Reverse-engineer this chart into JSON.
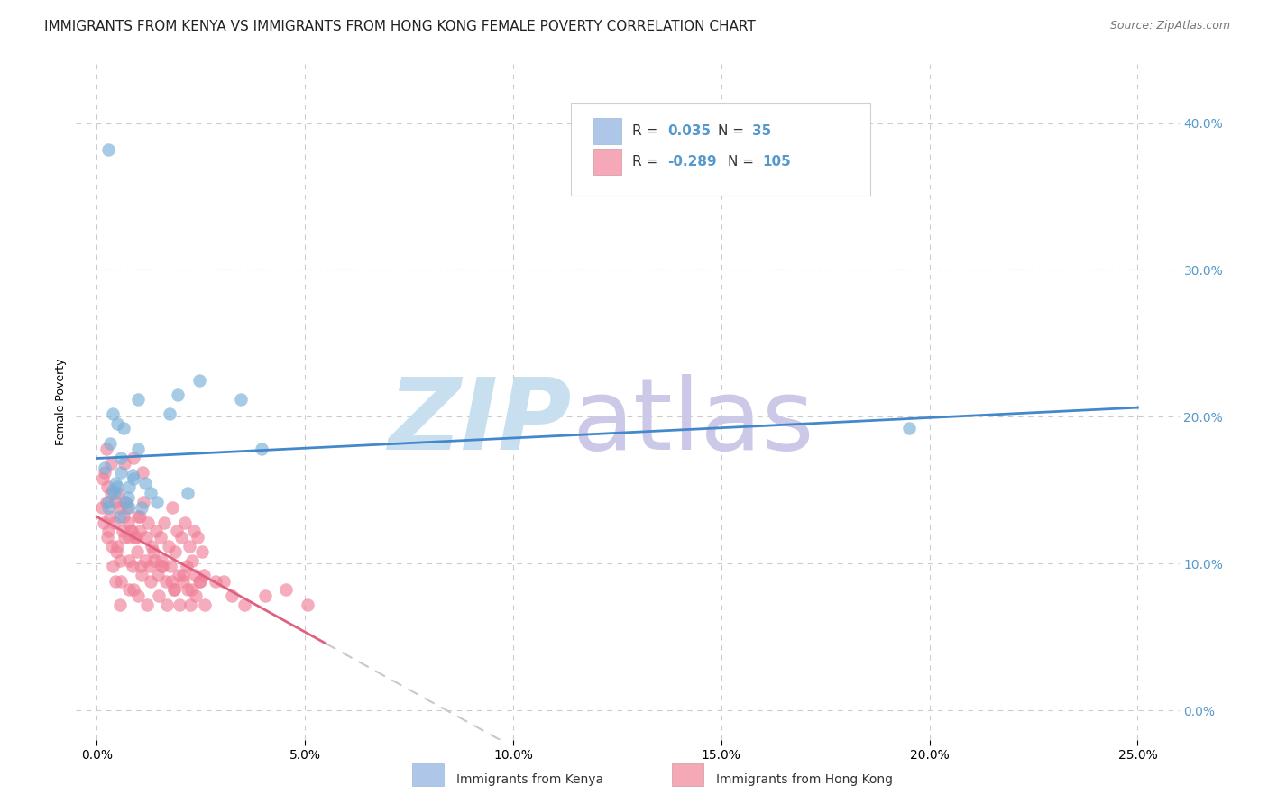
{
  "title": "IMMIGRANTS FROM KENYA VS IMMIGRANTS FROM HONG KONG FEMALE POVERTY CORRELATION CHART",
  "source": "Source: ZipAtlas.com",
  "xlabel_ticks": [
    0.0,
    5.0,
    10.0,
    15.0,
    20.0,
    25.0
  ],
  "ylabel_ticks": [
    0.0,
    10.0,
    20.0,
    30.0,
    40.0
  ],
  "xlim": [
    -0.5,
    26.0
  ],
  "ylim": [
    -2.0,
    44.0
  ],
  "ylabel": "Female Poverty",
  "kenya_color": "#7ab0d8",
  "kenya_scatter_alpha": 0.65,
  "hk_color": "#f08098",
  "hk_scatter_alpha": 0.65,
  "kenya_trend_color": "#4488cc",
  "hk_trend_color": "#e06080",
  "hk_trend_dashed_color": "#c8c8c8",
  "grid_color": "#cccccc",
  "background_color": "#ffffff",
  "title_fontsize": 11,
  "axis_label_fontsize": 9,
  "tick_fontsize": 10,
  "right_tick_color": "#5599cc",
  "legend_box_color": "#aec6e8",
  "legend_pink_color": "#f4a8b8",
  "legend_text_color": "#5599cc",
  "legend_label_color": "#333333",
  "kenya_points": [
    [
      0.18,
      16.5
    ],
    [
      0.45,
      15.5
    ],
    [
      0.28,
      13.8
    ],
    [
      0.75,
      14.5
    ],
    [
      0.38,
      15.0
    ],
    [
      0.55,
      13.2
    ],
    [
      1.15,
      15.5
    ],
    [
      0.85,
      16.0
    ],
    [
      0.65,
      19.2
    ],
    [
      1.45,
      14.2
    ],
    [
      0.32,
      18.2
    ],
    [
      1.95,
      21.5
    ],
    [
      0.48,
      19.5
    ],
    [
      1.75,
      20.2
    ],
    [
      0.58,
      17.2
    ],
    [
      0.42,
      14.8
    ],
    [
      2.45,
      22.5
    ],
    [
      0.98,
      17.8
    ],
    [
      0.78,
      13.8
    ],
    [
      3.45,
      21.2
    ],
    [
      0.28,
      38.2
    ],
    [
      3.95,
      17.8
    ],
    [
      0.68,
      14.2
    ],
    [
      1.08,
      13.8
    ],
    [
      0.88,
      15.8
    ],
    [
      0.58,
      16.2
    ],
    [
      1.28,
      14.8
    ],
    [
      0.48,
      15.2
    ],
    [
      2.18,
      14.8
    ],
    [
      0.38,
      20.2
    ],
    [
      0.78,
      15.2
    ],
    [
      0.98,
      21.2
    ],
    [
      19.5,
      19.2
    ],
    [
      0.28,
      14.2
    ]
  ],
  "hk_points": [
    [
      0.12,
      13.8
    ],
    [
      0.22,
      14.2
    ],
    [
      0.32,
      13.2
    ],
    [
      0.42,
      12.8
    ],
    [
      0.52,
      14.8
    ],
    [
      0.62,
      12.2
    ],
    [
      0.72,
      13.8
    ],
    [
      0.82,
      12.2
    ],
    [
      0.92,
      11.8
    ],
    [
      1.02,
      13.2
    ],
    [
      1.12,
      14.2
    ],
    [
      1.22,
      12.8
    ],
    [
      1.32,
      11.2
    ],
    [
      1.42,
      12.2
    ],
    [
      1.52,
      11.8
    ],
    [
      1.62,
      12.8
    ],
    [
      1.72,
      11.2
    ],
    [
      1.82,
      13.8
    ],
    [
      1.92,
      12.2
    ],
    [
      2.02,
      11.8
    ],
    [
      2.12,
      12.8
    ],
    [
      2.22,
      11.2
    ],
    [
      2.32,
      12.2
    ],
    [
      2.42,
      11.8
    ],
    [
      2.52,
      10.8
    ],
    [
      0.14,
      15.8
    ],
    [
      0.24,
      15.2
    ],
    [
      0.34,
      14.8
    ],
    [
      0.44,
      14.2
    ],
    [
      0.54,
      13.8
    ],
    [
      0.64,
      13.2
    ],
    [
      0.74,
      12.8
    ],
    [
      0.84,
      12.2
    ],
    [
      0.94,
      11.8
    ],
    [
      1.04,
      12.2
    ],
    [
      0.16,
      12.8
    ],
    [
      0.26,
      11.8
    ],
    [
      0.36,
      11.2
    ],
    [
      0.46,
      10.8
    ],
    [
      0.56,
      10.2
    ],
    [
      0.66,
      11.8
    ],
    [
      0.76,
      10.2
    ],
    [
      0.86,
      9.8
    ],
    [
      0.96,
      10.8
    ],
    [
      1.06,
      9.8
    ],
    [
      1.16,
      10.2
    ],
    [
      1.26,
      9.8
    ],
    [
      1.36,
      10.8
    ],
    [
      1.46,
      9.2
    ],
    [
      1.56,
      10.2
    ],
    [
      1.66,
      8.8
    ],
    [
      1.76,
      9.8
    ],
    [
      1.86,
      8.2
    ],
    [
      1.96,
      9.2
    ],
    [
      2.06,
      8.8
    ],
    [
      2.16,
      9.8
    ],
    [
      2.26,
      8.2
    ],
    [
      2.36,
      9.2
    ],
    [
      2.46,
      8.8
    ],
    [
      2.56,
      9.2
    ],
    [
      0.18,
      16.2
    ],
    [
      0.28,
      12.2
    ],
    [
      0.38,
      9.8
    ],
    [
      0.48,
      11.2
    ],
    [
      0.58,
      8.8
    ],
    [
      0.68,
      14.2
    ],
    [
      0.78,
      11.8
    ],
    [
      0.88,
      8.2
    ],
    [
      0.98,
      13.2
    ],
    [
      1.08,
      9.2
    ],
    [
      1.18,
      11.8
    ],
    [
      1.28,
      8.8
    ],
    [
      1.38,
      10.2
    ],
    [
      1.48,
      7.8
    ],
    [
      1.58,
      9.8
    ],
    [
      1.68,
      7.2
    ],
    [
      1.78,
      8.8
    ],
    [
      1.88,
      10.8
    ],
    [
      1.98,
      7.2
    ],
    [
      2.08,
      9.2
    ],
    [
      2.18,
      8.2
    ],
    [
      2.28,
      10.2
    ],
    [
      2.38,
      7.8
    ],
    [
      2.48,
      8.8
    ],
    [
      2.58,
      7.2
    ],
    [
      3.05,
      8.8
    ],
    [
      3.55,
      7.2
    ],
    [
      4.05,
      7.8
    ],
    [
      4.55,
      8.2
    ],
    [
      5.05,
      7.2
    ],
    [
      0.22,
      17.8
    ],
    [
      0.33,
      16.8
    ],
    [
      0.44,
      8.8
    ],
    [
      0.55,
      7.2
    ],
    [
      0.66,
      16.8
    ],
    [
      0.77,
      8.2
    ],
    [
      0.88,
      17.2
    ],
    [
      0.99,
      7.8
    ],
    [
      1.1,
      16.2
    ],
    [
      1.21,
      7.2
    ],
    [
      1.55,
      9.8
    ],
    [
      1.85,
      8.2
    ],
    [
      2.25,
      7.2
    ],
    [
      2.85,
      8.8
    ],
    [
      3.25,
      7.8
    ]
  ],
  "watermark_zip_color": "#c8dff0",
  "watermark_atlas_color": "#ccc8e8"
}
